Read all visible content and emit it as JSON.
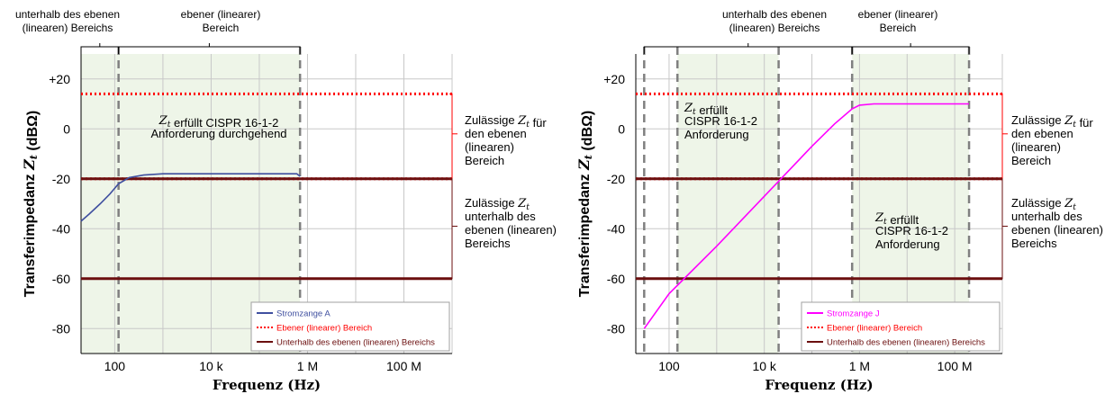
{
  "chart_data": [
    {
      "type": "line",
      "xlabel": "Frequenz (Hz)",
      "ylabel": "Transferimpedanz Z_t (dBΩ)",
      "x_scale": "log",
      "xlim": [
        20,
        1000000000
      ],
      "ylim": [
        -90,
        30
      ],
      "x_ticks": [
        {
          "value": 100,
          "label": "100"
        },
        {
          "value": 10000,
          "label": "10 k"
        },
        {
          "value": 1000000,
          "label": "1 M"
        },
        {
          "value": 100000000,
          "label": "100 M"
        }
      ],
      "y_ticks": [
        {
          "value": 20,
          "label": "+20"
        },
        {
          "value": 0,
          "label": "0"
        },
        {
          "value": -20,
          "label": "-20"
        },
        {
          "value": -40,
          "label": "-40"
        },
        {
          "value": -60,
          "label": "-60"
        },
        {
          "value": -80,
          "label": "-80"
        }
      ],
      "series": [
        {
          "name": "Stromzange A",
          "color": "#3f4f9f",
          "x": [
            20,
            30,
            50,
            80,
            120,
            200,
            400,
            1000,
            10000,
            100000,
            600000,
            700000
          ],
          "y": [
            -37,
            -34,
            -30,
            -26,
            -22,
            -19.5,
            -18.5,
            -18,
            -18,
            -18,
            -18,
            -19
          ]
        },
        {
          "name": "Ebener (linearer) Bereich",
          "color": "#ff0000",
          "style": "dotted",
          "x": [
            20,
            1000000000
          ],
          "y": [
            14,
            14
          ]
        },
        {
          "name": "Ebener (linearer) Bereich",
          "color": "#ff0000",
          "style": "dotted",
          "x": [
            20,
            1000000000
          ],
          "y": [
            -20,
            -20
          ]
        },
        {
          "name": "Unterhalb des ebenen (linearen) Bereichs",
          "color": "#6b0f0f",
          "x": [
            20,
            1000000000
          ],
          "y": [
            -20,
            -20
          ]
        },
        {
          "name": "Unterhalb des ebenen (linearen) Bereichs",
          "color": "#6b0f0f",
          "x": [
            20,
            1000000000
          ],
          "y": [
            -60,
            -60
          ]
        }
      ],
      "compliance_limits": {
        "upper": 14,
        "boundary": -20,
        "lower": -60
      },
      "legend": [
        "Stromzange A",
        "Ebener (linearer) Bereich",
        "Unterhalb des ebenen (linearen) Bereichs"
      ],
      "legend_position": "bottom-right",
      "vertical_markers": [
        120,
        700000
      ],
      "shaded_ranges": [
        [
          20,
          700000
        ]
      ],
      "region_labels": [
        {
          "lines": [
            "unterhalb des ebenen",
            "(linearen) Bereichs"
          ],
          "x": 20
        },
        {
          "lines": [
            "ebener (linearer)",
            "Bereich"
          ],
          "x": 9000
        }
      ],
      "annotations": [
        {
          "lines": [
            "Z_t erfüllt CISPR 16-1-2",
            "Anforderung durchgehend"
          ],
          "x": 40000,
          "y": 4
        }
      ],
      "side_notes": [
        {
          "lines": [
            "Zulässige Z_t für",
            "den ebenen",
            "(linearen)",
            "Bereich"
          ],
          "y": 5
        },
        {
          "lines": [
            "Zulässige Z_t",
            "unterhalb des",
            "ebenen (linearen)",
            "Bereichs"
          ],
          "y": -40
        }
      ]
    },
    {
      "type": "line",
      "xlabel": "Frequenz (Hz)",
      "ylabel": "Transferimpedanz Z_t (dBΩ)",
      "x_scale": "log",
      "xlim": [
        20,
        1000000000
      ],
      "ylim": [
        -90,
        30
      ],
      "x_ticks": [
        {
          "value": 100,
          "label": "100"
        },
        {
          "value": 10000,
          "label": "10 k"
        },
        {
          "value": 1000000,
          "label": "1 M"
        },
        {
          "value": 100000000,
          "label": "100 M"
        }
      ],
      "y_ticks": [
        {
          "value": 20,
          "label": "+20"
        },
        {
          "value": 0,
          "label": "0"
        },
        {
          "value": -20,
          "label": "-20"
        },
        {
          "value": -40,
          "label": "-40"
        },
        {
          "value": -60,
          "label": "-60"
        },
        {
          "value": -80,
          "label": "-80"
        }
      ],
      "series": [
        {
          "name": "Stromzange J",
          "color": "#ff00ff",
          "x": [
            30,
            100,
            1000,
            10000,
            100000,
            300000,
            700000,
            1000000,
            2000000,
            10000000,
            100000000,
            200000000
          ],
          "y": [
            -80,
            -66,
            -47,
            -27,
            -7,
            2,
            8,
            9.5,
            10,
            10,
            10,
            10
          ]
        },
        {
          "name": "Ebener (linearer) Bereich",
          "color": "#ff0000",
          "style": "dotted",
          "x": [
            20,
            1000000000
          ],
          "y": [
            14,
            14
          ]
        },
        {
          "name": "Ebener (linearer) Bereich",
          "color": "#ff0000",
          "style": "dotted",
          "x": [
            20,
            1000000000
          ],
          "y": [
            -20,
            -20
          ]
        },
        {
          "name": "Unterhalb des ebenen (linearen) Bereichs",
          "color": "#6b0f0f",
          "x": [
            20,
            1000000000
          ],
          "y": [
            -20,
            -20
          ]
        },
        {
          "name": "Unterhalb des ebenen (linearen) Bereichs",
          "color": "#6b0f0f",
          "x": [
            20,
            1000000000
          ],
          "y": [
            -60,
            -60
          ]
        }
      ],
      "compliance_limits": {
        "upper": 14,
        "boundary": -20,
        "lower": -60
      },
      "legend": [
        "Stromzange J",
        "Ebener (linearer) Bereich",
        "Unterhalb des ebenen (linearen) Bereichs"
      ],
      "legend_position": "bottom-right",
      "vertical_markers": [
        30,
        150,
        20000,
        700000,
        200000000
      ],
      "shaded_ranges": [
        [
          150,
          20000
        ],
        [
          700000,
          200000000
        ]
      ],
      "region_labels": [
        {
          "lines": [
            "unterhalb des ebenen",
            "(linearen) Bereichs"
          ],
          "x": 1200
        },
        {
          "lines": [
            "ebener (linearer)",
            "Bereich"
          ],
          "x": 12000000
        }
      ],
      "annotations": [
        {
          "lines": [
            "Z_t erfüllt",
            "CISPR 16-1-2",
            "Anforderung"
          ],
          "x": 150,
          "y": 12
        },
        {
          "lines": [
            "Z_t erfüllt",
            "CISPR 16-1-2",
            "Anforderung"
          ],
          "x": 1000000,
          "y": -33
        }
      ],
      "side_notes": [
        {
          "lines": [
            "Zulässige Z_t für",
            "den ebenen",
            "(linearen)",
            "Bereich"
          ],
          "y": 5
        },
        {
          "lines": [
            "Zulässige Z_t",
            "unterhalb des",
            "ebenen (linearen)",
            "Bereichs"
          ],
          "y": -40
        }
      ]
    }
  ]
}
